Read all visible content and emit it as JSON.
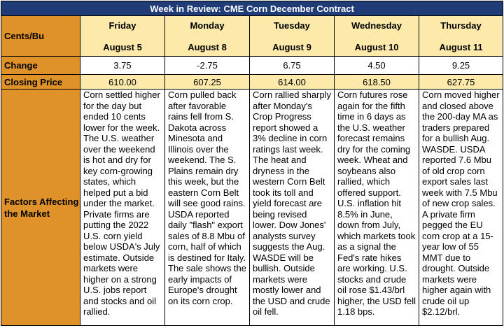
{
  "title": "Week in Review: CME Corn December Contract",
  "labels": {
    "unit": "Cents/Bu",
    "change": "Change",
    "closing_price": "Closing Price",
    "factors": "Factors Affecting the Market"
  },
  "days": [
    {
      "day": "Friday",
      "date": "August 5",
      "change": "3.75",
      "close": "610.00",
      "factors": "Corn settled higher for the day but ended 10 cents lower for the week. The U.S. weather over the weekend is hot and dry for key corn-growing states, which helped put a bid under the market. Private firms are putting the 2022 U.S. corn yield below USDA's July estimate. Outside markets were higher on a strong U.S. jobs report and stocks and oil rallied."
    },
    {
      "day": "Monday",
      "date": "August 8",
      "change": "-2.75",
      "close": "607.25",
      "factors": "Corn pulled back after favorable rains fell from S. Dakota across Minesota and Illinois over the weekend. The S. Plains remain dry this week, but the eastern Corn Belt will see good rains. USDA reported daily \"flash\" export sales of 8.8 Mbu of corn, half of which is destined for Italy. The sale shows the early impacts of Europe's drought on its corn crop."
    },
    {
      "day": "Tuesday",
      "date": "August 9",
      "change": "6.75",
      "close": "614.00",
      "factors": "Corn rallied sharply after Monday's Crop Progress report showed a 3% decline in corn ratings last week. The heat and dryness in the western Corn Belt took its toll and yield forecast are being revised lower. Dow Jones' analysts survey suggests the Aug. WASDE will be bullish. Outside markets were mostly lower and the USD and crude oil fell."
    },
    {
      "day": "Wednesday",
      "date": "August 10",
      "change": "4.50",
      "close": "618.50",
      "factors": "Corn futures rose again for the fifth time in 6 days as the U.S. weather forecast remains dry for the coming week. Wheat and soybeans also rallied, which offered support. U.S. inflation hit 8.5% in June, down from July, which markets took as a signal the Fed's rate hikes are working. U.S. stocks and crude oil rose $1.43/brl higher, the USD fell 1.18 bps."
    },
    {
      "day": "Thursday",
      "date": "August 11",
      "change": "9.25",
      "close": "627.75",
      "factors": "Corn moved higher and closed above the 200-day MA as traders prepared for a bullish Aug. WASDE. USDA reported 7.6 Mbu of old crop corn export sales last week with 7.5 Mbu of new crop sales. A private firm pegged the EU corn crop at a 15-year low of 55 MMT due to drought. Outside markets were higher again with crude oil up $2.12/brl."
    }
  ]
}
